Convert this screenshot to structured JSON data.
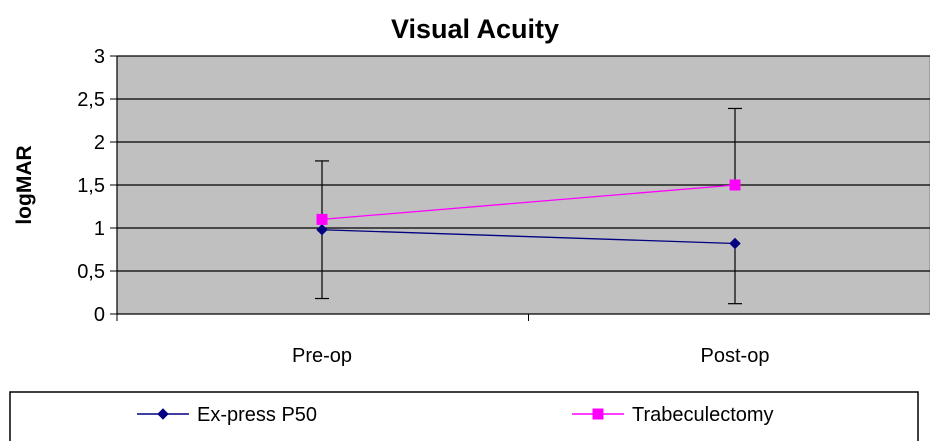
{
  "chart_data": {
    "type": "line",
    "title": "Visual Acuity",
    "xlabel": "",
    "ylabel": "logMAR",
    "categories": [
      "Pre-op",
      "Post-op"
    ],
    "ylim": [
      0,
      3
    ],
    "yticks": [
      "0",
      "0,5",
      "1",
      "1,5",
      "2",
      "2,5",
      "3"
    ],
    "yticks_values": [
      0,
      0.5,
      1,
      1.5,
      2,
      2.5,
      3
    ],
    "grid": true,
    "legend_position": "bottom",
    "plot_background": "#c0c0c0",
    "series": [
      {
        "name": "Ex-press P50",
        "values": [
          0.98,
          0.82
        ],
        "error_low": [
          0.18,
          0.12
        ],
        "error_high": [
          1.78,
          null
        ],
        "color": "#000080",
        "marker": "diamond"
      },
      {
        "name": "Trabeculectomy",
        "values": [
          1.1,
          1.5
        ],
        "error_low": [
          null,
          null
        ],
        "error_high": [
          null,
          2.39
        ],
        "color": "#ff00ff",
        "marker": "square"
      }
    ]
  }
}
